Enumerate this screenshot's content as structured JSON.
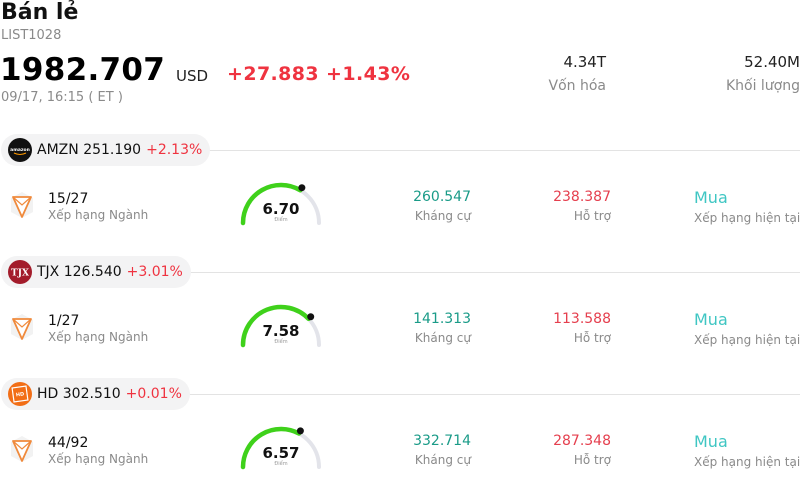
{
  "header": {
    "title": "Bán lẻ",
    "code": "LIST1028",
    "price": "1982.707",
    "currency": "USD",
    "change": "+27.883 +1.43%",
    "timestamp": "09/17, 16:15 ( ET )",
    "market_cap_value": "4.34T",
    "market_cap_label": "Vốn hóa",
    "volume_value": "52.40M",
    "volume_label": "Khối lượng"
  },
  "colors": {
    "negative_red": "#ef3340",
    "resistance_green": "#1a9b88",
    "rating_teal": "#3fc6c3",
    "gauge_green": "#3fd11b"
  },
  "stocks": [
    {
      "ticker": "AMZN",
      "price": "251.190",
      "change": "+2.13%",
      "logo_icon": "amazon-logo-icon",
      "industry_rank": "15/27",
      "industry_rank_label": "Xếp hạng Ngành",
      "score": "6.70",
      "score_fraction": 0.67,
      "score_label": "Điểm",
      "resistance": "260.547",
      "resistance_label": "Kháng cự",
      "support": "238.387",
      "support_label": "Hỗ trợ",
      "rating": "Mua",
      "rating_label": "Xếp hạng hiện tại"
    },
    {
      "ticker": "TJX",
      "price": "126.540",
      "change": "+3.01%",
      "logo_icon": "tjx-logo-icon",
      "industry_rank": "1/27",
      "industry_rank_label": "Xếp hạng Ngành",
      "score": "7.58",
      "score_fraction": 0.758,
      "score_label": "Điểm",
      "resistance": "141.313",
      "resistance_label": "Kháng cự",
      "support": "113.588",
      "support_label": "Hỗ trợ",
      "rating": "Mua",
      "rating_label": "Xếp hạng hiện tại"
    },
    {
      "ticker": "HD",
      "price": "302.510",
      "change": "+0.01%",
      "logo_icon": "home-depot-logo-icon",
      "industry_rank": "44/92",
      "industry_rank_label": "Xếp hạng Ngành",
      "score": "6.57",
      "score_fraction": 0.657,
      "score_label": "Điểm",
      "resistance": "332.714",
      "resistance_label": "Kháng cự",
      "support": "287.348",
      "support_label": "Hỗ trợ",
      "rating": "Mua",
      "rating_label": "Xếp hạng hiện tại"
    }
  ]
}
